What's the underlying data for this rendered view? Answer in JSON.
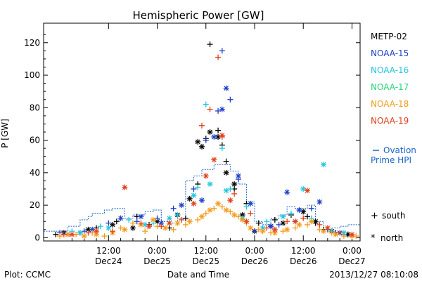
{
  "chart_data": {
    "type": "scatter",
    "title": "Hemispheric Power [GW]",
    "xlabel": "Date and Time",
    "ylabel": "P [GW]",
    "xlim": [
      -4,
      74
    ],
    "ylim": [
      -2,
      132
    ],
    "x_unit": "hours since 2013-12-24 00:00 UT",
    "y_ticks": [
      0,
      20,
      40,
      60,
      80,
      100,
      120
    ],
    "x_ticks": [
      {
        "x": 12,
        "line1": "12:00",
        "line2": "Dec24"
      },
      {
        "x": 24,
        "line1": "0:00",
        "line2": "Dec25"
      },
      {
        "x": 36,
        "line1": "12:00",
        "line2": "Dec25"
      },
      {
        "x": 48,
        "line1": "0:00",
        "line2": "Dec26"
      },
      {
        "x": 60,
        "line1": "12:00",
        "line2": "Dec26"
      },
      {
        "x": 72,
        "line1": "0:00",
        "line2": "Dec27"
      }
    ],
    "legend": {
      "placement": "right",
      "entries": [
        {
          "name": "METP-02",
          "color": "#000000"
        },
        {
          "name": "NOAA-15",
          "color": "#1f3fc8"
        },
        {
          "name": "NOAA-16",
          "color": "#22c6df"
        },
        {
          "name": "NOAA-17",
          "color": "#27d37a"
        },
        {
          "name": "NOAA-18",
          "color": "#f39a1b"
        },
        {
          "name": "NOAA-19",
          "color": "#e0401a"
        }
      ],
      "ovation_label_line1": "Ovation",
      "ovation_label_line2": "Prime HPI",
      "ovation_color": "#1a66c8",
      "marker_south_label": "south",
      "marker_north_label": "north"
    },
    "ovation_step": [
      [
        -4,
        4
      ],
      [
        2,
        7
      ],
      [
        5,
        11
      ],
      [
        7,
        13
      ],
      [
        8,
        15
      ],
      [
        11,
        17
      ],
      [
        13,
        18
      ],
      [
        16,
        12
      ],
      [
        18,
        14
      ],
      [
        21,
        16
      ],
      [
        23,
        17
      ],
      [
        25,
        10
      ],
      [
        27,
        9
      ],
      [
        29,
        12
      ],
      [
        31,
        35
      ],
      [
        33,
        38
      ],
      [
        35,
        42
      ],
      [
        38,
        45
      ],
      [
        42,
        41
      ],
      [
        44,
        33
      ],
      [
        46,
        22
      ],
      [
        48,
        10
      ],
      [
        50,
        8
      ],
      [
        52,
        12
      ],
      [
        54,
        14
      ],
      [
        56,
        19
      ],
      [
        58,
        18
      ],
      [
        61,
        20
      ],
      [
        63,
        10
      ],
      [
        65,
        5
      ],
      [
        67,
        6
      ],
      [
        69,
        7
      ],
      [
        71,
        8
      ],
      [
        74,
        8
      ]
    ],
    "series": [
      {
        "name": "METP-02",
        "color": "#000000",
        "south": [
          [
            -1,
            2
          ],
          [
            5,
            3
          ],
          [
            9,
            6
          ],
          [
            14,
            10
          ],
          [
            19,
            13
          ],
          [
            22,
            8
          ],
          [
            27,
            6
          ],
          [
            31,
            12
          ],
          [
            34,
            33
          ],
          [
            36,
            61
          ],
          [
            37,
            119
          ],
          [
            39,
            66
          ],
          [
            40,
            57
          ],
          [
            41,
            47
          ],
          [
            43,
            30
          ],
          [
            46,
            21
          ],
          [
            49,
            9
          ],
          [
            53,
            11
          ],
          [
            57,
            14
          ],
          [
            61,
            13
          ],
          [
            63,
            9
          ],
          [
            65,
            5
          ],
          [
            68,
            3
          ],
          [
            71,
            2
          ]
        ],
        "north": [
          [
            1,
            3
          ],
          [
            7,
            5
          ],
          [
            13,
            8
          ],
          [
            18,
            6
          ],
          [
            24,
            10
          ],
          [
            29,
            14
          ],
          [
            32,
            24
          ],
          [
            34,
            59
          ],
          [
            35,
            56
          ],
          [
            37,
            65
          ],
          [
            39,
            62
          ],
          [
            41,
            40
          ],
          [
            43,
            33
          ],
          [
            45,
            14
          ],
          [
            48,
            4
          ],
          [
            52,
            7
          ],
          [
            55,
            9
          ],
          [
            60,
            16
          ],
          [
            63,
            10
          ],
          [
            67,
            4
          ],
          [
            71,
            2
          ]
        ]
      },
      {
        "name": "NOAA-15",
        "color": "#1f3fc8",
        "south": [
          [
            0,
            3
          ],
          [
            6,
            4
          ],
          [
            12,
            9
          ],
          [
            19,
            10
          ],
          [
            24,
            12
          ],
          [
            28,
            18
          ],
          [
            33,
            30
          ],
          [
            36,
            60
          ],
          [
            39,
            78
          ],
          [
            40,
            115
          ],
          [
            42,
            85
          ],
          [
            44,
            36
          ],
          [
            48,
            4
          ],
          [
            54,
            8
          ],
          [
            58,
            10
          ],
          [
            62,
            18
          ],
          [
            66,
            5
          ],
          [
            70,
            2
          ]
        ],
        "north": [
          [
            2,
            2
          ],
          [
            8,
            5
          ],
          [
            15,
            12
          ],
          [
            20,
            13
          ],
          [
            25,
            9
          ],
          [
            30,
            20
          ],
          [
            35,
            23
          ],
          [
            38,
            62
          ],
          [
            40,
            79
          ],
          [
            41,
            92
          ],
          [
            44,
            38
          ],
          [
            47,
            21
          ],
          [
            52,
            7
          ],
          [
            56,
            28
          ],
          [
            59,
            17
          ],
          [
            64,
            22
          ],
          [
            69,
            3
          ]
        ]
      },
      {
        "name": "NOAA-16",
        "color": "#22c6df",
        "south": [
          [
            3,
            4
          ],
          [
            10,
            7
          ],
          [
            17,
            11
          ],
          [
            23,
            9
          ],
          [
            29,
            14
          ],
          [
            34,
            31
          ],
          [
            36,
            82
          ],
          [
            40,
            55
          ],
          [
            42,
            30
          ],
          [
            46,
            19
          ],
          [
            51,
            10
          ],
          [
            57,
            15
          ],
          [
            62,
            12
          ],
          [
            67,
            4
          ]
        ],
        "north": [
          [
            5,
            3
          ],
          [
            12,
            6
          ],
          [
            21,
            8
          ],
          [
            27,
            12
          ],
          [
            33,
            26
          ],
          [
            37,
            33
          ],
          [
            41,
            29
          ],
          [
            45,
            12
          ],
          [
            50,
            6
          ],
          [
            55,
            13
          ],
          [
            60,
            30
          ],
          [
            65,
            45
          ],
          [
            70,
            3
          ]
        ]
      },
      {
        "name": "NOAA-17",
        "color": "#27d37a",
        "south": [],
        "north": []
      },
      {
        "name": "NOAA-18",
        "color": "#f39a1b",
        "south": [
          [
            0,
            1
          ],
          [
            4,
            2
          ],
          [
            8,
            3
          ],
          [
            11,
            1
          ],
          [
            15,
            6
          ],
          [
            18,
            9
          ],
          [
            21,
            4
          ],
          [
            24,
            7
          ],
          [
            28,
            5
          ],
          [
            31,
            8
          ],
          [
            34,
            11
          ],
          [
            36,
            15
          ],
          [
            38,
            18
          ],
          [
            40,
            19
          ],
          [
            42,
            16
          ],
          [
            44,
            13
          ],
          [
            46,
            9
          ],
          [
            49,
            5
          ],
          [
            52,
            3
          ],
          [
            55,
            4
          ],
          [
            58,
            6
          ],
          [
            61,
            8
          ],
          [
            64,
            5
          ],
          [
            67,
            3
          ],
          [
            70,
            1
          ],
          [
            73,
            1
          ]
        ],
        "north": [
          [
            2,
            2
          ],
          [
            6,
            1
          ],
          [
            9,
            2
          ],
          [
            13,
            3
          ],
          [
            16,
            5
          ],
          [
            20,
            8
          ],
          [
            23,
            11
          ],
          [
            26,
            6
          ],
          [
            29,
            9
          ],
          [
            32,
            10
          ],
          [
            35,
            13
          ],
          [
            37,
            17
          ],
          [
            39,
            21
          ],
          [
            41,
            17
          ],
          [
            43,
            14
          ],
          [
            45,
            11
          ],
          [
            47,
            6
          ],
          [
            50,
            4
          ],
          [
            53,
            3
          ],
          [
            56,
            5
          ],
          [
            59,
            8
          ],
          [
            62,
            10
          ],
          [
            65,
            4
          ],
          [
            68,
            2
          ],
          [
            72,
            1
          ]
        ]
      },
      {
        "name": "NOAA-19",
        "color": "#e0401a",
        "south": [
          [
            1,
            2
          ],
          [
            7,
            3
          ],
          [
            13,
            4
          ],
          [
            20,
            9
          ],
          [
            25,
            7
          ],
          [
            30,
            11
          ],
          [
            35,
            69
          ],
          [
            37,
            79
          ],
          [
            39,
            111
          ],
          [
            40,
            62
          ],
          [
            43,
            27
          ],
          [
            47,
            15
          ],
          [
            51,
            6
          ],
          [
            56,
            10
          ],
          [
            60,
            12
          ],
          [
            64,
            8
          ],
          [
            69,
            3
          ]
        ],
        "north": [
          [
            3,
            2
          ],
          [
            9,
            4
          ],
          [
            16,
            31
          ],
          [
            22,
            7
          ],
          [
            27,
            9
          ],
          [
            33,
            21
          ],
          [
            36,
            38
          ],
          [
            38,
            48
          ],
          [
            40,
            63
          ],
          [
            42,
            23
          ],
          [
            46,
            10
          ],
          [
            53,
            5
          ],
          [
            58,
            10
          ],
          [
            61,
            29
          ],
          [
            66,
            6
          ],
          [
            72,
            2
          ]
        ]
      }
    ]
  },
  "footer": {
    "plot_credit": "Plot: CCMC",
    "timestamp": "2013/12/27 08:10:08"
  }
}
